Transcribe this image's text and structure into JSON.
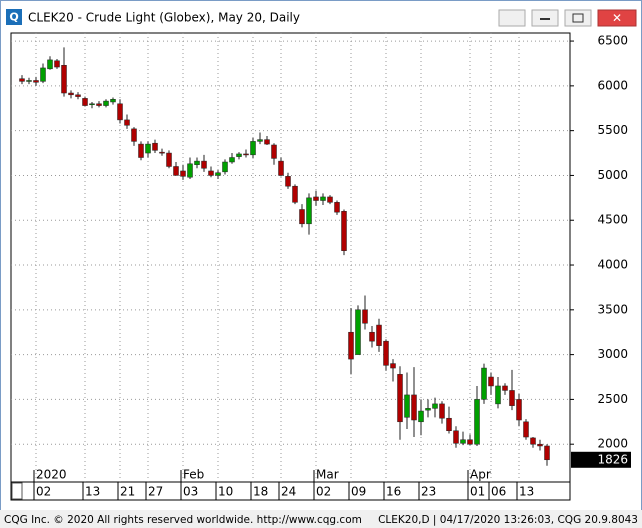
{
  "window": {
    "title": "CLEK20 - Crude Light (Globex), May 20, Daily",
    "footer_left": "CQG Inc. © 2020 All rights reserved worldwide. http://www.cqg.com",
    "footer_right": "CLEK20,D | 04/17/2020 13:26:03, CQG 20.9.8043"
  },
  "chart_data": {
    "type": "candlestick",
    "categories": [
      null,
      null,
      "02",
      null,
      null,
      null,
      null,
      null,
      null,
      "13",
      null,
      null,
      null,
      null,
      "21",
      null,
      null,
      null,
      "27",
      null,
      null,
      null,
      null,
      "03",
      null,
      null,
      null,
      null,
      "10",
      null,
      null,
      null,
      null,
      "18",
      null,
      null,
      null,
      "24",
      null,
      null,
      null,
      null,
      "02",
      null,
      null,
      null,
      null,
      "09",
      null,
      null,
      null,
      null,
      "16",
      null,
      null,
      null,
      null,
      "23",
      null,
      null,
      null,
      null,
      null,
      null,
      "01",
      null,
      null,
      "06",
      null,
      null,
      null,
      "13",
      null,
      null,
      null,
      null
    ],
    "open": [
      6080,
      6050,
      6060,
      6050,
      6190,
      6280,
      6230,
      5920,
      5900,
      5860,
      5790,
      5800,
      5780,
      5820,
      5800,
      5620,
      5520,
      5350,
      5250,
      5360,
      5260,
      5250,
      5100,
      5050,
      4980,
      5120,
      5160,
      5050,
      5000,
      5040,
      5150,
      5210,
      5240,
      5230,
      5380,
      5400,
      5340,
      5160,
      4990,
      4880,
      4620,
      4460,
      4760,
      4720,
      4760,
      4700,
      4600,
      3250,
      3000,
      3500,
      3250,
      3330,
      3150,
      2900,
      2780,
      2300,
      2550,
      2250,
      2380,
      2400,
      2450,
      2290,
      2150,
      2010,
      2050,
      2000,
      2500,
      2750,
      2450,
      2650,
      2600,
      2500,
      2250,
      2070,
      2000,
      1980
    ],
    "high": [
      6120,
      6090,
      6100,
      6250,
      6330,
      6300,
      6430,
      5950,
      5930,
      5880,
      5820,
      5830,
      5850,
      5870,
      5850,
      5680,
      5540,
      5380,
      5380,
      5400,
      5300,
      5280,
      5150,
      5120,
      5200,
      5200,
      5230,
      5100,
      5060,
      5180,
      5250,
      5260,
      5290,
      5420,
      5480,
      5440,
      5360,
      5200,
      5030,
      4900,
      4680,
      4800,
      4830,
      4800,
      4780,
      4720,
      4620,
      3520,
      3550,
      3660,
      3320,
      3400,
      3170,
      2950,
      2870,
      2800,
      2860,
      2500,
      2500,
      2520,
      2480,
      2420,
      2200,
      2140,
      2110,
      2650,
      2900,
      2800,
      2750,
      2680,
      2830,
      2560,
      2280,
      2080,
      2050,
      2000
    ],
    "low": [
      6020,
      6020,
      6000,
      6030,
      6180,
      6190,
      5880,
      5860,
      5850,
      5770,
      5750,
      5760,
      5760,
      5790,
      5580,
      5520,
      5330,
      5170,
      5200,
      5250,
      5220,
      5080,
      5000,
      4950,
      4960,
      5080,
      5040,
      4980,
      4960,
      5010,
      5130,
      5180,
      5200,
      5190,
      5350,
      5340,
      5120,
      4990,
      4850,
      4680,
      4420,
      4340,
      4660,
      4670,
      4680,
      4560,
      4110,
      2780,
      3000,
      3280,
      3080,
      3030,
      2820,
      2700,
      2050,
      2170,
      2080,
      2100,
      2300,
      2300,
      2230,
      2120,
      1960,
      1990,
      1990,
      1980,
      2450,
      2550,
      2400,
      2550,
      2380,
      2200,
      2050,
      1960,
      1930,
      1760
    ],
    "close": [
      6050,
      6060,
      6040,
      6200,
      6290,
      6210,
      5920,
      5900,
      5880,
      5780,
      5800,
      5780,
      5830,
      5850,
      5620,
      5560,
      5380,
      5200,
      5350,
      5280,
      5250,
      5100,
      5000,
      4990,
      5130,
      5160,
      5080,
      5000,
      5030,
      5150,
      5200,
      5240,
      5230,
      5380,
      5400,
      5350,
      5190,
      5000,
      4880,
      4700,
      4460,
      4750,
      4720,
      4760,
      4700,
      4590,
      4160,
      2950,
      3500,
      3350,
      3150,
      3100,
      2880,
      2850,
      2250,
      2550,
      2270,
      2370,
      2400,
      2450,
      2290,
      2150,
      2010,
      2050,
      2000,
      2500,
      2850,
      2650,
      2650,
      2600,
      2430,
      2270,
      2080,
      2000,
      1980,
      1826
    ],
    "up_color": "#00a000",
    "down_color": "#b00000",
    "month_labels": [
      {
        "value": 2,
        "label": "2020"
      },
      {
        "value": 23,
        "label": "Feb"
      },
      {
        "value": 42,
        "label": "Mar"
      },
      {
        "value": 64,
        "label": "Apr"
      }
    ],
    "ylim": [
      1578,
      6590
    ],
    "yticks": [
      2000,
      2500,
      3000,
      3500,
      4000,
      4500,
      5000,
      5500,
      6000,
      6500
    ],
    "last_price": 1826,
    "grid": true
  }
}
